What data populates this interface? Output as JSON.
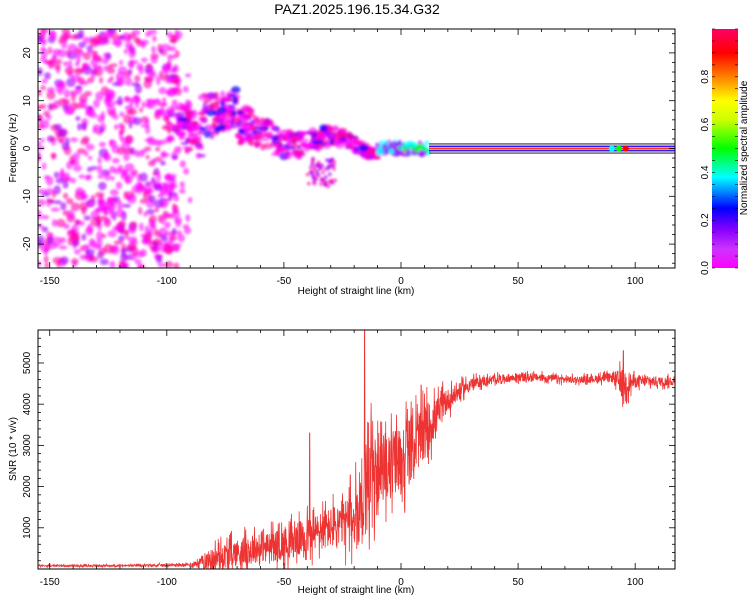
{
  "title": "PAZ1.2025.196.15.34.G32",
  "chart_data": [
    {
      "type": "heatmap",
      "xlabel": "Height of straight line (km)",
      "ylabel": "Frequency (Hz)",
      "xlim": [
        -155,
        117
      ],
      "ylim": [
        -25,
        25
      ],
      "xticks": [
        -150,
        -100,
        -50,
        0,
        50,
        100
      ],
      "yticks": [
        -20,
        -10,
        0,
        10,
        20
      ],
      "grid": false,
      "colorbar": {
        "label": "Normalized spectral amplitude",
        "range": [
          0.0,
          1.0
        ],
        "ticks": [
          0.0,
          0.2,
          0.4,
          0.6,
          0.8
        ],
        "colormap": [
          "#ff00ff",
          "#ff00aa",
          "#aa00ff",
          "#0000ff",
          "#00ffff",
          "#00ff00",
          "#ffff00",
          "#ff8000",
          "#ff0000",
          "#ff0066"
        ]
      },
      "regions": [
        {
          "description": "noise",
          "x": [
            -155,
            -95
          ],
          "f": [
            -25,
            25
          ],
          "amplitude": [
            0.0,
            0.25
          ]
        },
        {
          "description": "signal",
          "x": [
            -95,
            -10
          ],
          "f_center": [
            5,
            0
          ],
          "f_spread": [
            10,
            2
          ],
          "amplitude": [
            0.1,
            0.5
          ]
        },
        {
          "description": "signal",
          "x": [
            -10,
            12
          ],
          "f_center": [
            0,
            0
          ],
          "amplitude": [
            0.3,
            0.6
          ]
        },
        {
          "description": "carrier",
          "x": [
            12,
            117
          ],
          "f_center": 0,
          "amplitude": 1.0
        }
      ]
    },
    {
      "type": "line",
      "xlabel": "Height of straight line (km)",
      "ylabel": "SNR (10 * v/v)",
      "xlim": [
        -155,
        117
      ],
      "ylim": [
        0,
        5800
      ],
      "xticks": [
        -150,
        -100,
        -50,
        0,
        50,
        100
      ],
      "yticks": [
        1000,
        2000,
        3000,
        4000,
        5000
      ],
      "color": "#ee3333",
      "grid": false,
      "envelope": {
        "x": [
          -155,
          -120,
          -90,
          -80,
          -70,
          -60,
          -50,
          -40,
          -30,
          -20,
          -15,
          -10,
          -5,
          0,
          5,
          10,
          15,
          20,
          30,
          40,
          50,
          60,
          70,
          80,
          90,
          95,
          100,
          117
        ],
        "mean": [
          80,
          80,
          100,
          250,
          400,
          500,
          600,
          800,
          1000,
          1200,
          2000,
          2300,
          2500,
          2700,
          3000,
          3300,
          3700,
          4100,
          4500,
          4600,
          4650,
          4650,
          4600,
          4600,
          4650,
          4500,
          4550,
          4550
        ],
        "spread": [
          40,
          40,
          60,
          500,
          600,
          600,
          700,
          800,
          900,
          1200,
          2500,
          1300,
          1400,
          1500,
          1400,
          1200,
          800,
          500,
          250,
          180,
          180,
          160,
          150,
          150,
          200,
          700,
          250,
          180
        ]
      },
      "spikes": [
        {
          "x": -15.5,
          "y": 5800
        },
        {
          "x": -39,
          "y": 3300
        },
        {
          "x": 95,
          "y": 5300
        }
      ]
    }
  ]
}
